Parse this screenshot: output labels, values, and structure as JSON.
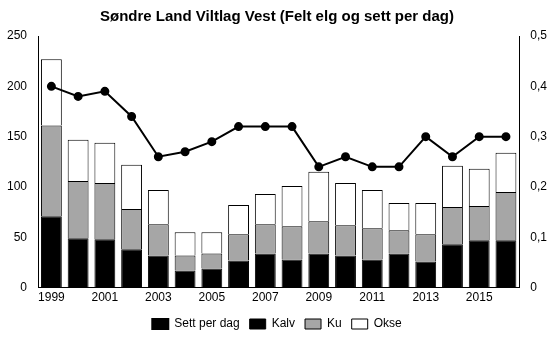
{
  "chart_data": {
    "type": "bar",
    "title": "Søndre Land Viltlag Vest (Felt elg og sett per dag)",
    "categories": [
      "1999",
      null,
      "2001",
      null,
      "2003",
      null,
      "2005",
      null,
      "2007",
      null,
      "2009",
      null,
      "2011",
      null,
      "2013",
      null,
      "2015",
      null
    ],
    "stacked": true,
    "grid": false,
    "legend": "bottom",
    "ylim": [
      0,
      250
    ],
    "yticks": [
      0,
      50,
      100,
      150,
      200,
      250
    ],
    "y2lim": [
      0,
      0.5
    ],
    "y2ticks": [
      0,
      {
        "value": 0.1,
        "label": "0,1"
      },
      {
        "value": 0.2,
        "label": "0,2"
      },
      {
        "value": 0.3,
        "label": "0,3"
      },
      {
        "value": 0.4,
        "label": "0,4"
      },
      {
        "value": 0.5,
        "label": "0,5"
      }
    ],
    "series": [
      {
        "name": "Kalv",
        "color": "#000000",
        "values": [
          71,
          49,
          48,
          38,
          32,
          17,
          19,
          27,
          34,
          28,
          34,
          32,
          28,
          34,
          26,
          43,
          47,
          47
        ]
      },
      {
        "name": "Ku",
        "color": "#a6a6a6",
        "values": [
          90,
          57,
          56,
          40,
          31,
          15,
          15,
          26,
          29,
          33,
          32,
          30,
          31,
          23,
          27,
          37,
          34,
          48
        ]
      },
      {
        "name": "Okse",
        "color": "#ffffff",
        "values": [
          66,
          41,
          40,
          44,
          34,
          23,
          21,
          29,
          30,
          40,
          49,
          42,
          38,
          27,
          31,
          41,
          37,
          39
        ]
      },
      {
        "name": "Sett per dag",
        "color": "#000000",
        "type": "line",
        "marker": "circle",
        "axis": "y2",
        "values": [
          0.4,
          0.38,
          0.39,
          0.34,
          0.26,
          0.27,
          0.29,
          0.32,
          0.32,
          0.32,
          0.24,
          0.26,
          0.24,
          0.24,
          0.3,
          0.26,
          0.3,
          0.3
        ]
      }
    ]
  }
}
